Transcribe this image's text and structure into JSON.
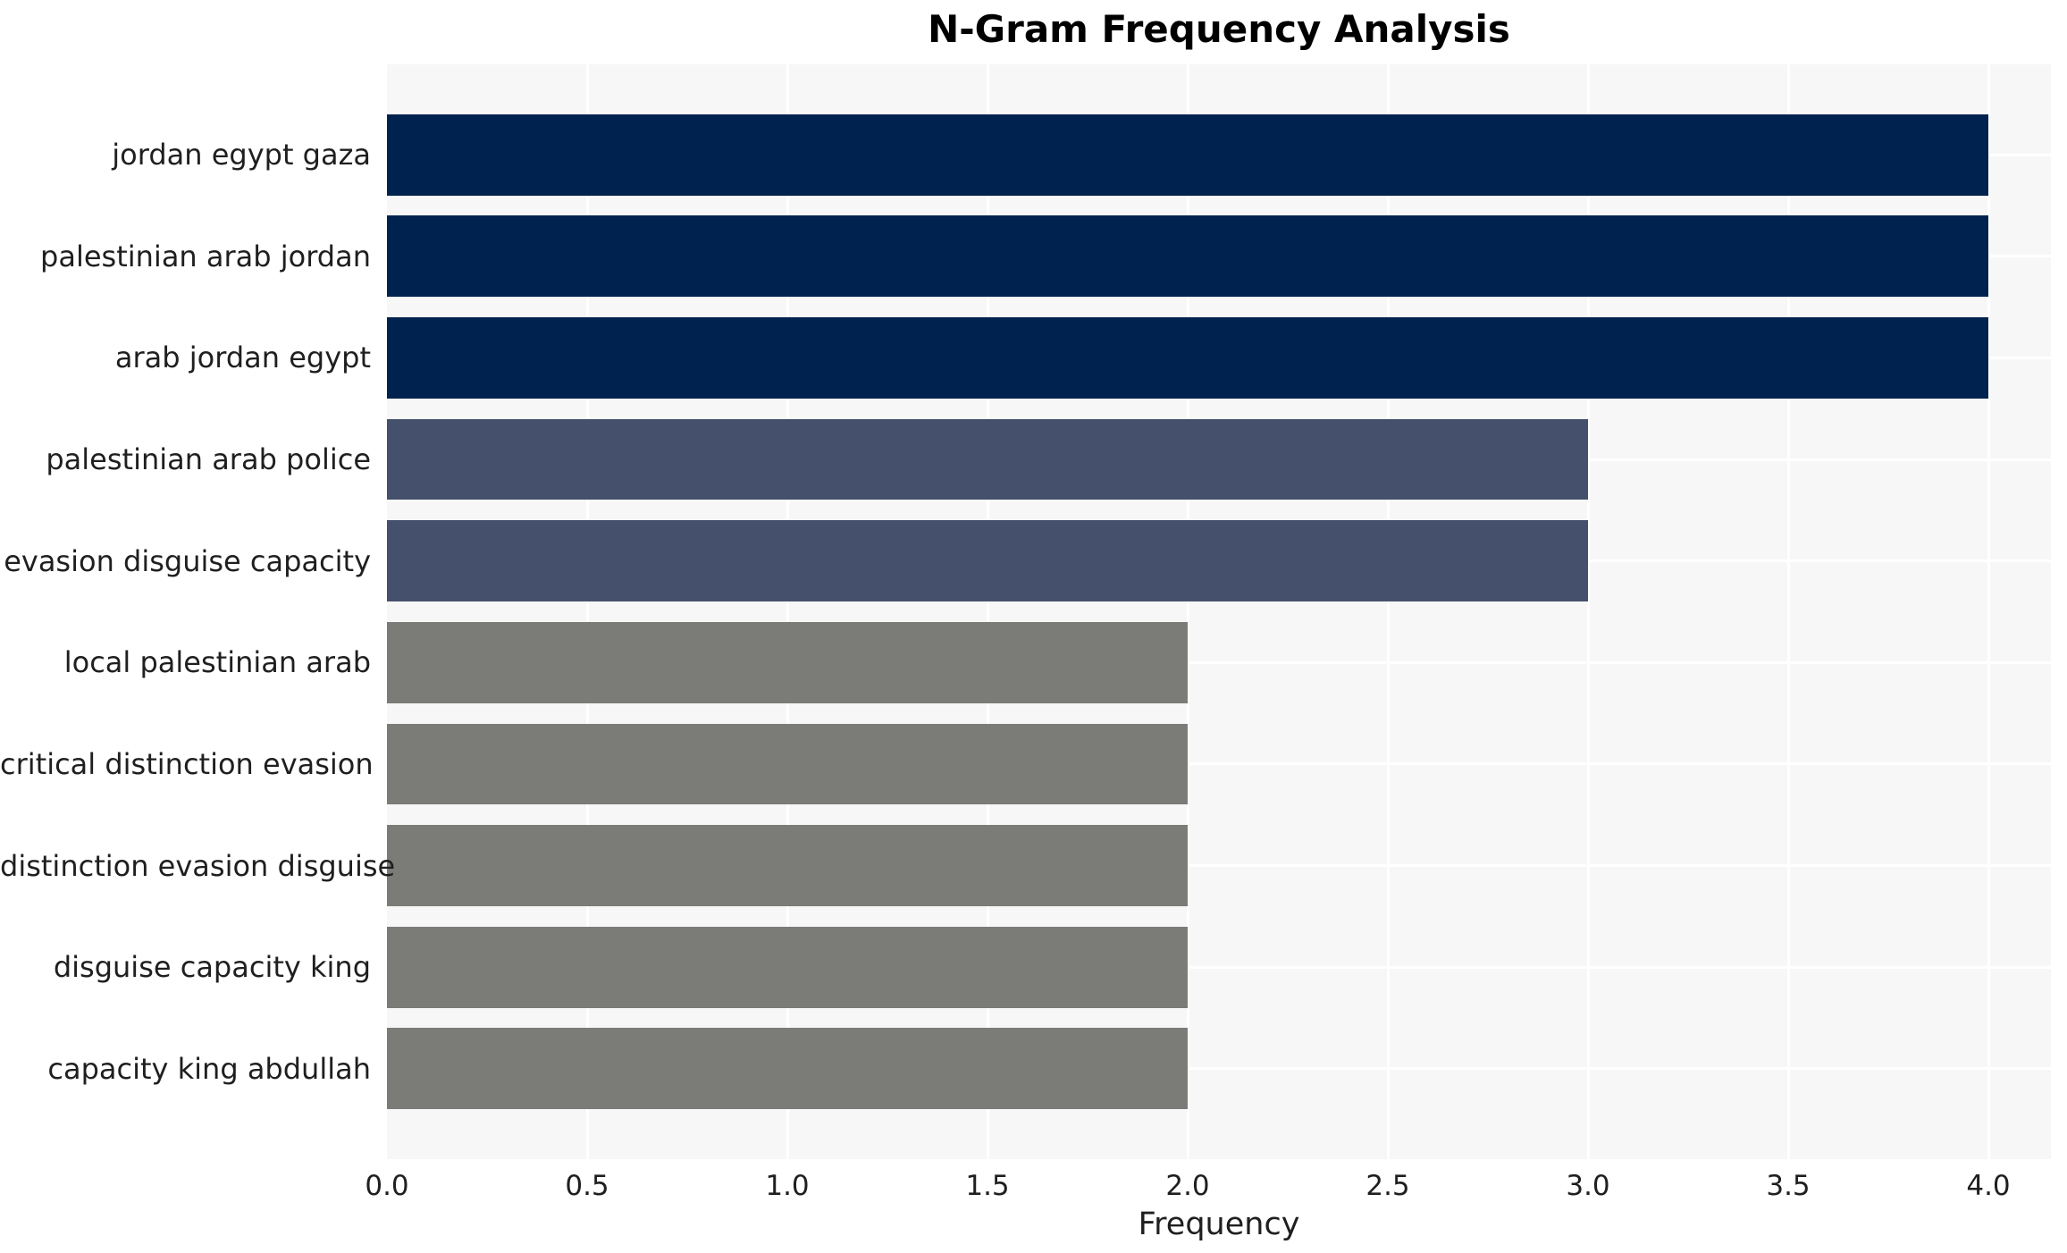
{
  "page": {
    "background": "#ffffff"
  },
  "chart_data": {
    "type": "bar",
    "orientation": "horizontal",
    "title": "N-Gram Frequency Analysis",
    "xlabel": "Frequency",
    "ylabel": "",
    "categories": [
      "jordan egypt gaza",
      "palestinian arab jordan",
      "arab jordan egypt",
      "palestinian arab police",
      "evasion disguise capacity",
      "local palestinian arab",
      "critical distinction evasion",
      "distinction evasion disguise",
      "disguise capacity king",
      "capacity king abdullah"
    ],
    "values": [
      4,
      4,
      4,
      3,
      3,
      2,
      2,
      2,
      2,
      2
    ],
    "bar_colors": [
      "#00224e",
      "#00224e",
      "#00224e",
      "#45506c",
      "#45506c",
      "#7b7b77",
      "#7b7b77",
      "#7b7b77",
      "#7b7b77",
      "#7b7b77"
    ],
    "xticks": [
      "0.0",
      "0.5",
      "1.0",
      "1.5",
      "2.0",
      "2.5",
      "3.0",
      "3.5",
      "4.0"
    ],
    "xlim": [
      0,
      4.16
    ],
    "grid": true,
    "legend_position": "none",
    "plot_background": "#f7f7f7",
    "grid_color": "#ffffff",
    "text_color": "#1f1f1f",
    "title_color": "#000000"
  }
}
